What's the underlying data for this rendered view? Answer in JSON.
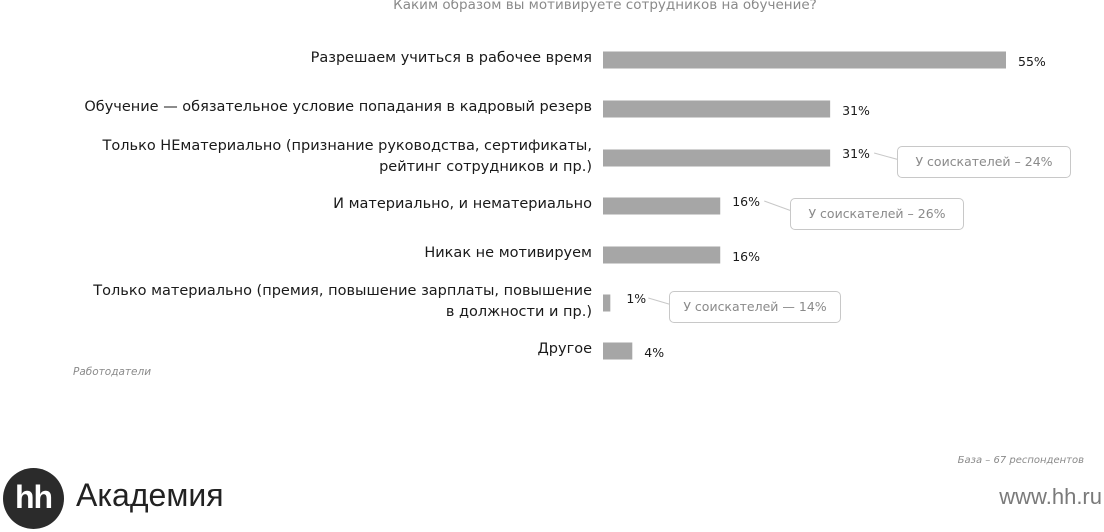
{
  "chart_data": {
    "type": "bar",
    "orientation": "horizontal",
    "title": "Каким образом вы мотивируете сотрудников на обучение?",
    "categories": [
      [
        "Разрешаем учиться в рабочее время"
      ],
      [
        "Обучение — обязательное условие попадания в кадровый резерв"
      ],
      [
        "Только НЕматериально (признание руководства, сертификаты,",
        "рейтинг сотрудников и пр.)"
      ],
      [
        "И материально, и нематериально"
      ],
      [
        "Никак не мотивируем"
      ],
      [
        "Только материально (премия, повышение зарплаты, повышение",
        "в должности и пр.)"
      ],
      [
        "Другое"
      ]
    ],
    "values": [
      55,
      31,
      31,
      16,
      16,
      1,
      4
    ],
    "value_labels": [
      "55%",
      "31%",
      "31%",
      "16%",
      "16%",
      "1%",
      "4%"
    ],
    "unit": "%",
    "bar_color": "#a6a6a6",
    "series_label": "Работодатели",
    "annotations": [
      {
        "category_index": 2,
        "text": "У соискателей – 24%"
      },
      {
        "category_index": 3,
        "text": "У соискателей – 26%"
      },
      {
        "category_index": 5,
        "text": "У соискателей — 14%"
      }
    ],
    "base_note": "База – 67 респондентов"
  },
  "branding": {
    "logo_mark": "hh",
    "logo_text": "Академия",
    "website": "www.hh.ru"
  }
}
